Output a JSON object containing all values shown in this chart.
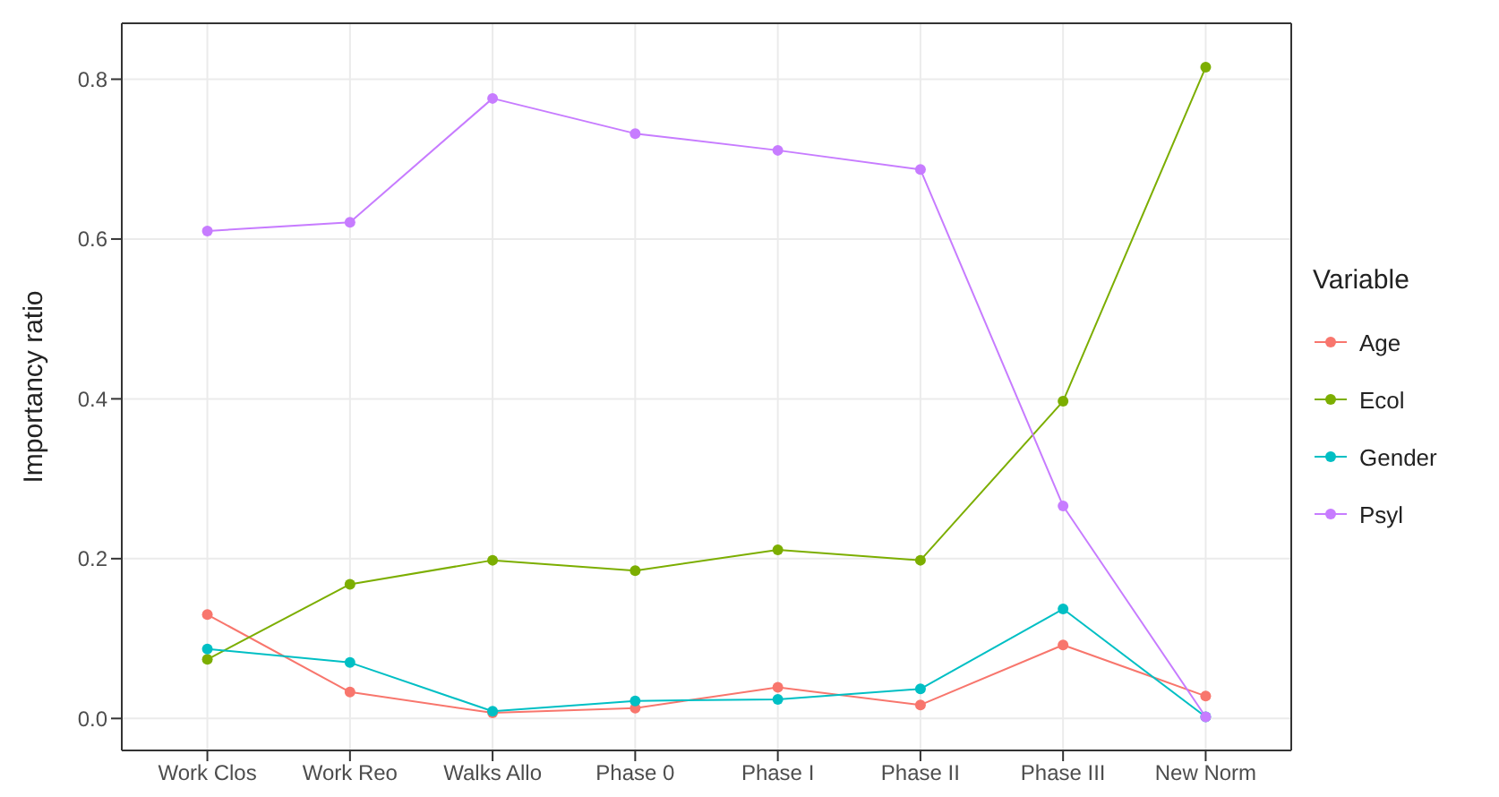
{
  "chart_data": {
    "type": "line",
    "xlabel": null,
    "ylabel": "Importancy ratio",
    "legend_title": "Variable",
    "categories": [
      "Work Clos",
      "Work Reo",
      "Walks Allo",
      "Phase 0",
      "Phase I",
      "Phase II",
      "Phase III",
      "New Norm"
    ],
    "series": [
      {
        "name": "Age",
        "color": "#f8766d",
        "values": [
          0.13,
          0.033,
          0.007,
          0.013,
          0.039,
          0.017,
          0.092,
          0.028
        ]
      },
      {
        "name": "Ecol",
        "color": "#7cae00",
        "values": [
          0.074,
          0.168,
          0.198,
          0.185,
          0.211,
          0.198,
          0.397,
          0.815
        ]
      },
      {
        "name": "Gender",
        "color": "#00bfc4",
        "values": [
          0.087,
          0.07,
          0.009,
          0.022,
          0.024,
          0.037,
          0.137,
          0.002
        ]
      },
      {
        "name": "Psyl",
        "color": "#c77cff",
        "values": [
          0.61,
          0.621,
          0.776,
          0.732,
          0.711,
          0.687,
          0.266,
          0.002
        ]
      }
    ],
    "ylim": [
      -0.04,
      0.87
    ],
    "yticks": [
      {
        "value": 0,
        "label": "0.0"
      },
      {
        "value": 0.2,
        "label": "0.2"
      },
      {
        "value": 0.4,
        "label": "0.4"
      },
      {
        "value": 0.6,
        "label": "0.6"
      },
      {
        "value": 0.8,
        "label": "0.8"
      }
    ],
    "grid": true,
    "legend": "right",
    "marker": "circle",
    "line_style": "solid"
  }
}
